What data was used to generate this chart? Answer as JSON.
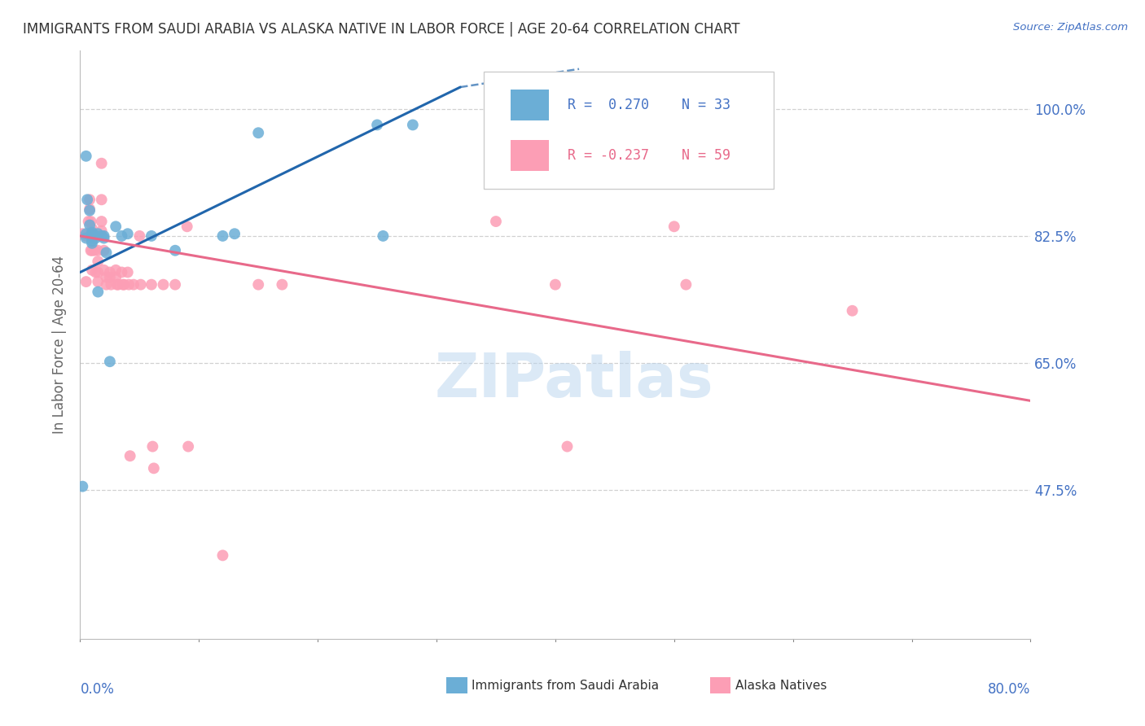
{
  "title": "IMMIGRANTS FROM SAUDI ARABIA VS ALASKA NATIVE IN LABOR FORCE | AGE 20-64 CORRELATION CHART",
  "source": "Source: ZipAtlas.com",
  "ylabel": "In Labor Force | Age 20-64",
  "y_ticks": [
    0.475,
    0.65,
    0.825,
    1.0
  ],
  "y_tick_labels": [
    "47.5%",
    "65.0%",
    "82.5%",
    "100.0%"
  ],
  "x_lim": [
    0.0,
    0.8
  ],
  "y_lim": [
    0.27,
    1.08
  ],
  "legend_r1": "R =  0.270",
  "legend_n1": "N = 33",
  "legend_r2": "R = -0.237",
  "legend_n2": "N = 59",
  "blue_color": "#6BAED6",
  "pink_color": "#FC9EB5",
  "line_blue_color": "#2166AC",
  "line_pink_color": "#E8698A",
  "watermark": "ZIPatlas",
  "blue_points": [
    [
      0.002,
      0.48
    ],
    [
      0.005,
      0.935
    ],
    [
      0.006,
      0.875
    ],
    [
      0.008,
      0.86
    ],
    [
      0.008,
      0.84
    ],
    [
      0.01,
      0.83
    ],
    [
      0.01,
      0.828
    ],
    [
      0.01,
      0.825
    ],
    [
      0.01,
      0.822
    ],
    [
      0.01,
      0.818
    ],
    [
      0.01,
      0.815
    ],
    [
      0.012,
      0.826
    ],
    [
      0.013,
      0.822
    ],
    [
      0.015,
      0.748
    ],
    [
      0.015,
      0.828
    ],
    [
      0.018,
      0.825
    ],
    [
      0.02,
      0.825
    ],
    [
      0.02,
      0.822
    ],
    [
      0.022,
      0.802
    ],
    [
      0.025,
      0.652
    ],
    [
      0.03,
      0.838
    ],
    [
      0.035,
      0.825
    ],
    [
      0.04,
      0.828
    ],
    [
      0.06,
      0.825
    ],
    [
      0.08,
      0.805
    ],
    [
      0.12,
      0.825
    ],
    [
      0.13,
      0.828
    ],
    [
      0.15,
      0.967
    ],
    [
      0.25,
      0.978
    ],
    [
      0.255,
      0.825
    ],
    [
      0.28,
      0.978
    ],
    [
      0.005,
      0.828
    ],
    [
      0.005,
      0.822
    ]
  ],
  "pink_points": [
    [
      0.002,
      0.828
    ],
    [
      0.005,
      0.825
    ],
    [
      0.005,
      0.762
    ],
    [
      0.007,
      0.845
    ],
    [
      0.008,
      0.875
    ],
    [
      0.008,
      0.862
    ],
    [
      0.009,
      0.845
    ],
    [
      0.009,
      0.805
    ],
    [
      0.01,
      0.835
    ],
    [
      0.01,
      0.825
    ],
    [
      0.01,
      0.805
    ],
    [
      0.01,
      0.778
    ],
    [
      0.012,
      0.805
    ],
    [
      0.013,
      0.775
    ],
    [
      0.015,
      0.825
    ],
    [
      0.015,
      0.805
    ],
    [
      0.015,
      0.79
    ],
    [
      0.015,
      0.775
    ],
    [
      0.015,
      0.762
    ],
    [
      0.018,
      0.925
    ],
    [
      0.018,
      0.875
    ],
    [
      0.018,
      0.845
    ],
    [
      0.018,
      0.832
    ],
    [
      0.02,
      0.805
    ],
    [
      0.02,
      0.778
    ],
    [
      0.022,
      0.768
    ],
    [
      0.022,
      0.758
    ],
    [
      0.025,
      0.775
    ],
    [
      0.025,
      0.768
    ],
    [
      0.026,
      0.758
    ],
    [
      0.03,
      0.778
    ],
    [
      0.03,
      0.768
    ],
    [
      0.031,
      0.758
    ],
    [
      0.032,
      0.758
    ],
    [
      0.035,
      0.775
    ],
    [
      0.036,
      0.758
    ],
    [
      0.037,
      0.758
    ],
    [
      0.04,
      0.775
    ],
    [
      0.041,
      0.758
    ],
    [
      0.042,
      0.522
    ],
    [
      0.045,
      0.758
    ],
    [
      0.05,
      0.825
    ],
    [
      0.051,
      0.758
    ],
    [
      0.06,
      0.758
    ],
    [
      0.061,
      0.535
    ],
    [
      0.062,
      0.505
    ],
    [
      0.07,
      0.758
    ],
    [
      0.08,
      0.758
    ],
    [
      0.09,
      0.838
    ],
    [
      0.091,
      0.535
    ],
    [
      0.12,
      0.385
    ],
    [
      0.15,
      0.758
    ],
    [
      0.17,
      0.758
    ],
    [
      0.35,
      0.845
    ],
    [
      0.4,
      0.758
    ],
    [
      0.41,
      0.535
    ],
    [
      0.5,
      0.838
    ],
    [
      0.51,
      0.758
    ],
    [
      0.65,
      0.722
    ]
  ],
  "blue_line": [
    [
      0.0,
      0.775
    ],
    [
      0.32,
      1.03
    ]
  ],
  "blue_line_dashed": [
    [
      0.32,
      1.03
    ],
    [
      0.42,
      1.055
    ]
  ],
  "pink_line": [
    [
      0.0,
      0.825
    ],
    [
      0.8,
      0.598
    ]
  ]
}
